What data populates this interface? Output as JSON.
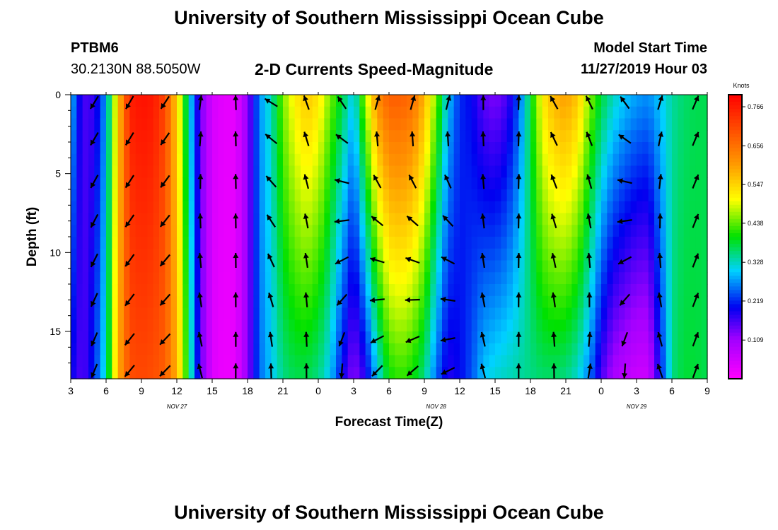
{
  "header": {
    "title": "University of Southern Mississippi Ocean Cube",
    "station_id": "PTBM6",
    "station_coords": "30.2130N 88.5050W",
    "chart_title": "2-D Currents Speed-Magnitude",
    "start_label": "Model Start Time",
    "start_value": "11/27/2019 Hour 03"
  },
  "footer": {
    "title": "University of Southern Mississippi Ocean Cube"
  },
  "chart_data": {
    "type": "heatmap",
    "title": "2-D Currents Speed-Magnitude",
    "xlabel": "Forecast Time(Z)",
    "ylabel": "Depth (ft)",
    "x_tick_labels": [
      "3",
      "6",
      "9",
      "12",
      "15",
      "18",
      "21",
      "0",
      "3",
      "6",
      "9",
      "12",
      "15",
      "18",
      "21",
      "0",
      "3",
      "6",
      "9"
    ],
    "date_labels": [
      {
        "text": "NOV 27",
        "at_hour": 12
      },
      {
        "text": "NOV 28",
        "at_hour": 34
      },
      {
        "text": "NOV 29",
        "at_hour": 51
      }
    ],
    "x_range_hours": [
      3,
      57
    ],
    "y_ticks": [
      0,
      5,
      10,
      15
    ],
    "y_range_ft": [
      0,
      18
    ],
    "y_reversed": true,
    "colorbar": {
      "unit": "Knots",
      "ticks": [
        "0.766",
        "0.656",
        "0.547",
        "0.438",
        "0.328",
        "0.219",
        "0.109"
      ],
      "range": [
        0,
        0.8
      ]
    },
    "speed_profile": {
      "hours": [
        3,
        4,
        5,
        6,
        7,
        8,
        9,
        10,
        11,
        12,
        13,
        14,
        15,
        16,
        17,
        18,
        19,
        20,
        21,
        22,
        23,
        24,
        25,
        26,
        27,
        28,
        29,
        30,
        31,
        32,
        33,
        34,
        35,
        36,
        37,
        38,
        39,
        40,
        41,
        42,
        43,
        44,
        45,
        46,
        47,
        48,
        49,
        50,
        51,
        52,
        53,
        54,
        55,
        56,
        57
      ],
      "surface_knots": [
        0.3,
        0.16,
        0.17,
        0.28,
        0.55,
        0.76,
        0.78,
        0.77,
        0.71,
        0.55,
        0.33,
        0.14,
        0.05,
        0.03,
        0.03,
        0.12,
        0.27,
        0.33,
        0.45,
        0.52,
        0.56,
        0.53,
        0.45,
        0.38,
        0.3,
        0.47,
        0.62,
        0.68,
        0.68,
        0.66,
        0.58,
        0.45,
        0.3,
        0.22,
        0.2,
        0.15,
        0.13,
        0.16,
        0.24,
        0.38,
        0.52,
        0.58,
        0.6,
        0.56,
        0.46,
        0.38,
        0.33,
        0.3,
        0.28,
        0.27,
        0.3,
        0.34,
        0.36,
        0.37,
        0.37
      ],
      "bottom_knots": [
        0.2,
        0.15,
        0.22,
        0.33,
        0.58,
        0.7,
        0.71,
        0.7,
        0.68,
        0.58,
        0.38,
        0.15,
        0.04,
        0.02,
        0.03,
        0.12,
        0.25,
        0.3,
        0.35,
        0.37,
        0.37,
        0.35,
        0.3,
        0.2,
        0.12,
        0.18,
        0.3,
        0.4,
        0.42,
        0.4,
        0.35,
        0.25,
        0.18,
        0.2,
        0.24,
        0.3,
        0.32,
        0.33,
        0.34,
        0.35,
        0.36,
        0.36,
        0.35,
        0.32,
        0.26,
        0.16,
        0.1,
        0.08,
        0.06,
        0.06,
        0.2,
        0.35,
        0.38,
        0.38,
        0.37
      ]
    },
    "arrow_hours": [
      5,
      8,
      11,
      14,
      17,
      20,
      23,
      26,
      29,
      32,
      35,
      38,
      41,
      44,
      47,
      50,
      53,
      56
    ],
    "arrow_depths_ft": [
      0.5,
      2.8,
      5.5,
      8,
      10.5,
      13,
      15.5,
      17.5
    ],
    "arrow_dir_surface_deg": [
      238,
      240,
      237,
      82,
      92,
      150,
      110,
      120,
      70,
      70,
      72,
      90,
      88,
      120,
      117,
      122,
      72,
      67
    ],
    "arrow_dir_bottom_deg": [
      248,
      230,
      225,
      105,
      90,
      90,
      90,
      270,
      230,
      225,
      210,
      105,
      90,
      90,
      80,
      270,
      110,
      70
    ],
    "arrow_length": 0.42
  }
}
